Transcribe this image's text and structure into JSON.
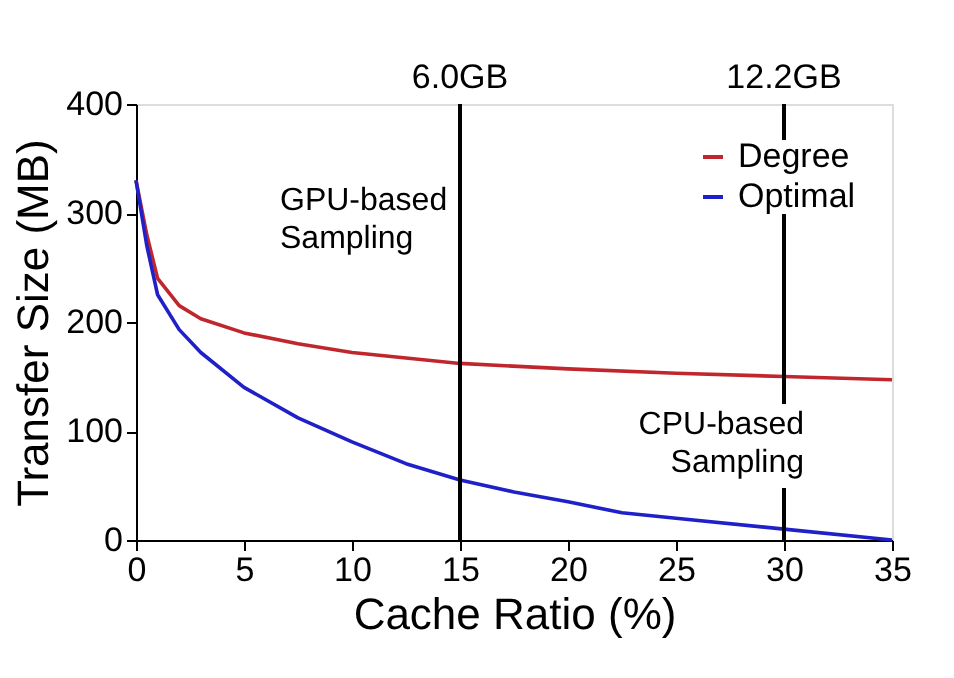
{
  "chart_data": {
    "type": "line",
    "xlabel": "Cache Ratio (%)",
    "ylabel": "Transfer Size (MB)",
    "xlim": [
      0,
      35
    ],
    "xticks": [
      0,
      5,
      10,
      15,
      20,
      25,
      30,
      35
    ],
    "ylim": [
      0,
      400
    ],
    "yticks": [
      0,
      100,
      200,
      300,
      400
    ],
    "legend": "top right",
    "grid": false,
    "line_style": "solid",
    "marker": "none",
    "series": [
      {
        "name": "Degree",
        "color": "#c0272d",
        "x": [
          0,
          0.5,
          1,
          2,
          3,
          5,
          7.5,
          10,
          15,
          20,
          25,
          30,
          35
        ],
        "values": [
          330,
          280,
          240,
          215,
          203,
          190,
          180,
          172,
          162,
          157,
          153,
          150,
          147
        ]
      },
      {
        "name": "Optimal",
        "color": "#2020c8",
        "x": [
          0,
          0.5,
          1,
          2,
          3,
          5,
          7.5,
          10,
          12.5,
          15,
          17.5,
          20,
          22.5,
          25,
          30,
          35
        ],
        "values": [
          330,
          270,
          225,
          193,
          172,
          140,
          112,
          90,
          70,
          55,
          44,
          35,
          25,
          20,
          10,
          0
        ]
      }
    ],
    "ref_lines": [
      {
        "axis": "x",
        "value": 15,
        "label": "6.0GB",
        "color": "#000000"
      },
      {
        "axis": "x",
        "value": 30,
        "label": "12.2GB",
        "color": "#000000"
      }
    ],
    "annotations": [
      "GPU-based\nSampling",
      "CPU-based\nSampling"
    ]
  }
}
